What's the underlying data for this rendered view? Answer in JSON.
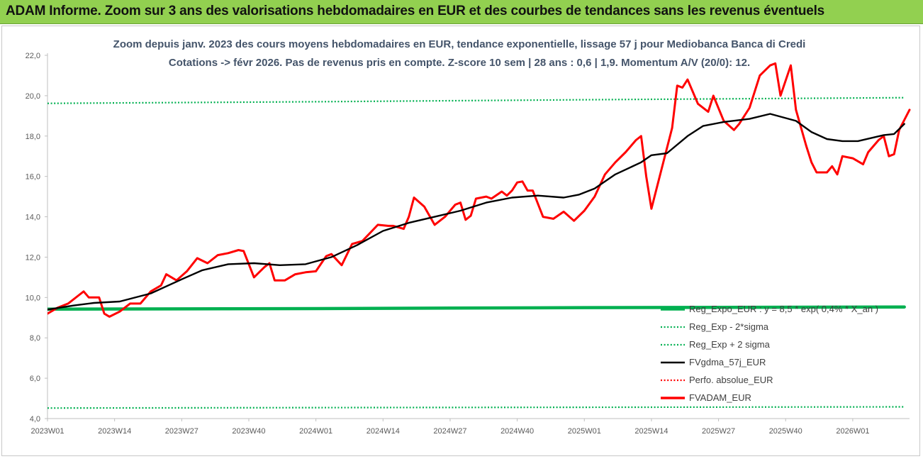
{
  "header": {
    "title": "ADAM Informe. Zoom sur 3 ans des valorisations hebdomadaires en EUR et des courbes de tendances sans les revenus éventuels"
  },
  "chart_data": {
    "type": "line",
    "title_lines": [
      "Zoom depuis janv. 2023 des cours moyens hebdomadaires en EUR, tendance exponentielle, lissage 57 j pour Mediobanca Banca di Credi",
      "Cotations -> févr 2026. Pas de revenus pris en compte. Z-score 10 sem | 28 ans : 0,6 | 1,9. Momentum A/V (20/0): 12."
    ],
    "xlabel": "",
    "ylabel": "",
    "ylim": [
      4,
      22
    ],
    "y_ticks": [
      "4,0",
      "6,0",
      "8,0",
      "10,0",
      "12,0",
      "14,0",
      "16,0",
      "18,0",
      "20,0",
      "22,0"
    ],
    "x_ticks": [
      "2023W01",
      "2023W14",
      "2023W27",
      "2023W40",
      "2024W01",
      "2024W14",
      "2024W27",
      "2024W40",
      "2025W01",
      "2025W14",
      "2025W27",
      "2025W40",
      "2026W01"
    ],
    "x_tick_index": [
      0,
      13,
      26,
      39,
      52,
      65,
      78,
      91,
      104,
      117,
      130,
      143,
      156
    ],
    "grid": false,
    "legend_position": "bottom-right",
    "series": [
      {
        "name": "Reg_Expo_EUR : y = 8,5 * exp( 0,4% * X_an )",
        "color": "#00b050",
        "style": "solid-thick",
        "points": [
          [
            0,
            9.42
          ],
          [
            52,
            9.45
          ],
          [
            104,
            9.5
          ],
          [
            166,
            9.53
          ]
        ]
      },
      {
        "name": "Reg_Exp - 2*sigma",
        "color": "#00b050",
        "style": "dotted",
        "points": [
          [
            0,
            4.52
          ],
          [
            52,
            4.54
          ],
          [
            104,
            4.56
          ],
          [
            166,
            4.58
          ]
        ]
      },
      {
        "name": "Reg_Exp + 2 sigma",
        "color": "#00b050",
        "style": "dotted",
        "points": [
          [
            0,
            19.62
          ],
          [
            52,
            19.7
          ],
          [
            104,
            19.8
          ],
          [
            166,
            19.9
          ]
        ]
      },
      {
        "name": "FVgdma_57j_EUR",
        "color": "#000000",
        "style": "solid",
        "points": [
          [
            0,
            9.4
          ],
          [
            5,
            9.6
          ],
          [
            9,
            9.73
          ],
          [
            14,
            9.8
          ],
          [
            20,
            10.2
          ],
          [
            26,
            10.9
          ],
          [
            30,
            11.35
          ],
          [
            35,
            11.65
          ],
          [
            40,
            11.7
          ],
          [
            45,
            11.6
          ],
          [
            50,
            11.65
          ],
          [
            55,
            12.0
          ],
          [
            60,
            12.6
          ],
          [
            65,
            13.3
          ],
          [
            70,
            13.7
          ],
          [
            75,
            14.0
          ],
          [
            80,
            14.3
          ],
          [
            85,
            14.7
          ],
          [
            90,
            14.95
          ],
          [
            95,
            15.05
          ],
          [
            100,
            14.95
          ],
          [
            103,
            15.1
          ],
          [
            106,
            15.4
          ],
          [
            110,
            16.1
          ],
          [
            115,
            16.7
          ],
          [
            117,
            17.05
          ],
          [
            120,
            17.15
          ],
          [
            124,
            18.0
          ],
          [
            127,
            18.5
          ],
          [
            131,
            18.7
          ],
          [
            136,
            18.85
          ],
          [
            140,
            19.1
          ],
          [
            145,
            18.75
          ],
          [
            148,
            18.2
          ],
          [
            151,
            17.85
          ],
          [
            154,
            17.75
          ],
          [
            157,
            17.75
          ],
          [
            162,
            18.05
          ],
          [
            164,
            18.1
          ],
          [
            166,
            18.6
          ]
        ]
      },
      {
        "name": "Perfo. absolue_EUR",
        "color": "#ff0000",
        "style": "dotted",
        "points": []
      },
      {
        "name": "FVADAM_EUR",
        "color": "#ff0000",
        "style": "solid-thick",
        "points": [
          [
            0,
            9.2
          ],
          [
            2,
            9.5
          ],
          [
            4,
            9.7
          ],
          [
            6,
            10.1
          ],
          [
            7,
            10.3
          ],
          [
            8,
            10.0
          ],
          [
            10,
            10.0
          ],
          [
            11,
            9.2
          ],
          [
            12,
            9.05
          ],
          [
            14,
            9.3
          ],
          [
            16,
            9.7
          ],
          [
            18,
            9.7
          ],
          [
            20,
            10.3
          ],
          [
            22,
            10.6
          ],
          [
            23,
            11.15
          ],
          [
            25,
            10.85
          ],
          [
            27,
            11.3
          ],
          [
            29,
            11.95
          ],
          [
            31,
            11.7
          ],
          [
            33,
            12.1
          ],
          [
            35,
            12.2
          ],
          [
            37,
            12.35
          ],
          [
            38,
            12.3
          ],
          [
            40,
            11.0
          ],
          [
            42,
            11.5
          ],
          [
            43,
            11.7
          ],
          [
            44,
            10.85
          ],
          [
            46,
            10.85
          ],
          [
            48,
            11.15
          ],
          [
            50,
            11.25
          ],
          [
            52,
            11.3
          ],
          [
            54,
            12.05
          ],
          [
            55,
            12.15
          ],
          [
            57,
            11.6
          ],
          [
            59,
            12.65
          ],
          [
            61,
            12.8
          ],
          [
            64,
            13.6
          ],
          [
            66,
            13.55
          ],
          [
            67,
            13.55
          ],
          [
            69,
            13.4
          ],
          [
            70,
            14.0
          ],
          [
            71,
            14.95
          ],
          [
            73,
            14.5
          ],
          [
            75,
            13.6
          ],
          [
            77,
            14.0
          ],
          [
            79,
            14.6
          ],
          [
            80,
            14.7
          ],
          [
            81,
            13.85
          ],
          [
            82,
            14.05
          ],
          [
            83,
            14.9
          ],
          [
            85,
            15.0
          ],
          [
            86,
            14.9
          ],
          [
            88,
            15.25
          ],
          [
            89,
            15.05
          ],
          [
            90,
            15.3
          ],
          [
            91,
            15.7
          ],
          [
            92,
            15.75
          ],
          [
            93,
            15.3
          ],
          [
            94,
            15.3
          ],
          [
            96,
            14.0
          ],
          [
            98,
            13.9
          ],
          [
            100,
            14.25
          ],
          [
            102,
            13.8
          ],
          [
            104,
            14.3
          ],
          [
            106,
            15.0
          ],
          [
            108,
            16.1
          ],
          [
            110,
            16.7
          ],
          [
            112,
            17.2
          ],
          [
            114,
            17.8
          ],
          [
            115,
            18.0
          ],
          [
            116,
            16.0
          ],
          [
            117,
            14.4
          ],
          [
            119,
            16.4
          ],
          [
            121,
            18.4
          ],
          [
            122,
            20.5
          ],
          [
            123,
            20.4
          ],
          [
            124,
            20.8
          ],
          [
            126,
            19.6
          ],
          [
            128,
            19.2
          ],
          [
            129,
            20.0
          ],
          [
            131,
            18.75
          ],
          [
            133,
            18.3
          ],
          [
            134,
            18.6
          ],
          [
            136,
            19.4
          ],
          [
            138,
            21.0
          ],
          [
            140,
            21.5
          ],
          [
            141,
            21.6
          ],
          [
            142,
            20.0
          ],
          [
            144,
            21.5
          ],
          [
            145,
            19.3
          ],
          [
            147,
            17.5
          ],
          [
            148,
            16.7
          ],
          [
            149,
            16.2
          ],
          [
            151,
            16.2
          ],
          [
            152,
            16.5
          ],
          [
            153,
            16.1
          ],
          [
            154,
            17.0
          ],
          [
            156,
            16.9
          ],
          [
            158,
            16.6
          ],
          [
            159,
            17.2
          ],
          [
            161,
            17.8
          ],
          [
            162,
            18.0
          ],
          [
            163,
            17.0
          ],
          [
            164,
            17.1
          ],
          [
            165,
            18.3
          ],
          [
            166,
            18.8
          ],
          [
            167,
            19.3
          ]
        ]
      }
    ]
  }
}
